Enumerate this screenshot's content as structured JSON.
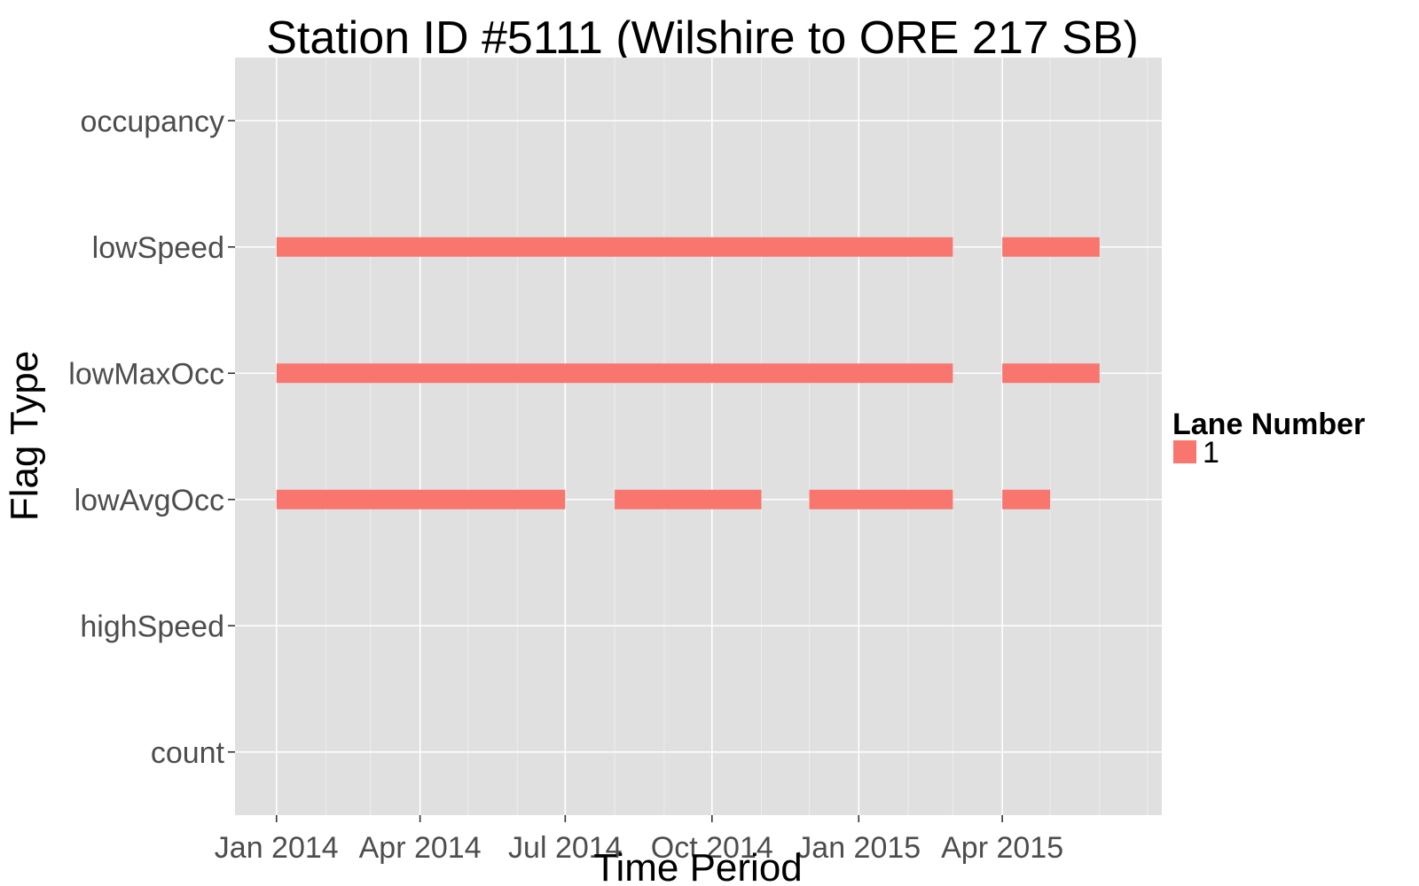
{
  "chart_data": {
    "type": "bar",
    "subtype": "timeline-segments",
    "title": "Station ID #5111 (Wilshire to ORE 217 SB)",
    "xlabel": "Time Period",
    "ylabel": "Flag Type",
    "x_range": [
      "2013-12-06",
      "2015-07-10"
    ],
    "x_ticks": [
      {
        "date": "2014-01-01",
        "label": "Jan 2014"
      },
      {
        "date": "2014-04-01",
        "label": "Apr 2014"
      },
      {
        "date": "2014-07-01",
        "label": "Jul 2014"
      },
      {
        "date": "2014-10-01",
        "label": "Oct 2014"
      },
      {
        "date": "2015-01-01",
        "label": "Jan 2015"
      },
      {
        "date": "2015-04-01",
        "label": "Apr 2015"
      }
    ],
    "categories": [
      "occupancy",
      "lowSpeed",
      "lowMaxOcc",
      "lowAvgOcc",
      "highSpeed",
      "count"
    ],
    "series": [
      {
        "name": "1",
        "color": "#F8766D",
        "segments": [
          {
            "category": "lowSpeed",
            "start": "2014-01-01",
            "end": "2015-03-01"
          },
          {
            "category": "lowSpeed",
            "start": "2015-04-01",
            "end": "2015-06-01"
          },
          {
            "category": "lowMaxOcc",
            "start": "2014-01-01",
            "end": "2015-03-01"
          },
          {
            "category": "lowMaxOcc",
            "start": "2015-04-01",
            "end": "2015-06-01"
          },
          {
            "category": "lowAvgOcc",
            "start": "2014-01-01",
            "end": "2014-07-01"
          },
          {
            "category": "lowAvgOcc",
            "start": "2014-08-01",
            "end": "2014-11-01"
          },
          {
            "category": "lowAvgOcc",
            "start": "2014-12-01",
            "end": "2015-03-01"
          },
          {
            "category": "lowAvgOcc",
            "start": "2015-04-01",
            "end": "2015-05-01"
          }
        ]
      }
    ],
    "legend": {
      "title": "Lane Number",
      "placement": "right",
      "entries": [
        "1"
      ]
    },
    "grid": true,
    "panel_color": "#E0E0E0",
    "grid_color": "#FFFFFF"
  }
}
